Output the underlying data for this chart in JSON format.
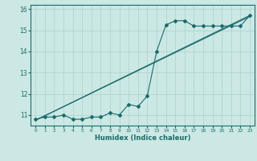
{
  "title": "",
  "xlabel": "Humidex (Indice chaleur)",
  "xlim": [
    -0.5,
    23.5
  ],
  "ylim": [
    10.5,
    16.2
  ],
  "bg_color": "#cce8e4",
  "grid_color": "#aad0cc",
  "line_color": "#1a6b6b",
  "line1_x": [
    0,
    1,
    2,
    3,
    4,
    5,
    6,
    7,
    8,
    9,
    10,
    11,
    12,
    13,
    14,
    15,
    16,
    17,
    18,
    19,
    20,
    21,
    22,
    23
  ],
  "line1_y": [
    10.8,
    10.9,
    10.9,
    11.0,
    10.8,
    10.8,
    10.9,
    10.9,
    11.1,
    11.0,
    11.5,
    11.4,
    11.9,
    14.0,
    15.25,
    15.45,
    15.45,
    15.2,
    15.2,
    15.2,
    15.2,
    15.2,
    15.2,
    15.7
  ],
  "line2_x": [
    0,
    23
  ],
  "line2_y": [
    10.8,
    15.7
  ],
  "line3_x": [
    0,
    23
  ],
  "line3_y": [
    10.8,
    15.7
  ]
}
